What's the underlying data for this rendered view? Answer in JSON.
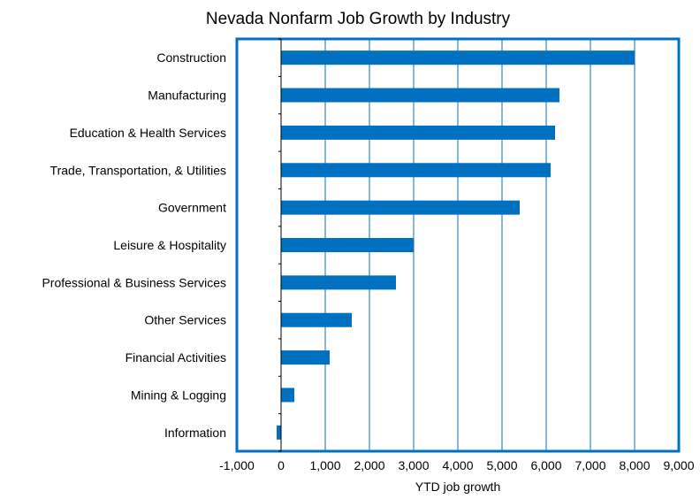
{
  "chart_data": {
    "type": "bar",
    "orientation": "horizontal",
    "title": "Nevada Nonfarm Job Growth by Industry",
    "xlabel": "YTD job growth",
    "ylabel": "",
    "categories": [
      "Construction",
      "Manufacturing",
      "Education & Health Services",
      "Trade, Transportation, & Utilities",
      "Government",
      "Leisure & Hospitality",
      "Professional & Business Services",
      "Other Services",
      "Financial Activities",
      "Mining & Logging",
      "Information"
    ],
    "values": [
      8000,
      6300,
      6200,
      6100,
      5400,
      3000,
      2600,
      1600,
      1100,
      300,
      -100
    ],
    "xlim": [
      -1000,
      9000
    ],
    "xticks": [
      -1000,
      0,
      1000,
      2000,
      3000,
      4000,
      5000,
      6000,
      7000,
      8000,
      9000
    ],
    "xtick_labels": [
      "-1,000",
      "0",
      "1,000",
      "2,000",
      "3,000",
      "4,000",
      "5,000",
      "6,000",
      "7,000",
      "8,000",
      "9,000"
    ],
    "grid": "vertical",
    "legend": "none",
    "colors": {
      "bar": "#0070C0",
      "grid": "#0070C0",
      "frame": "#0070C0"
    }
  }
}
